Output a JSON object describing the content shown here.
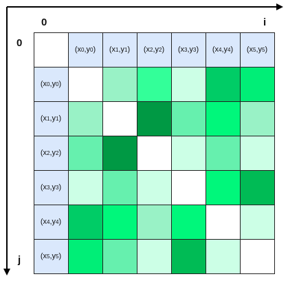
{
  "axes": {
    "origin_top": "0",
    "origin_left": "0",
    "horizontal": "i",
    "vertical": "j"
  },
  "headers": [
    {
      "x": "x",
      "xi": "0",
      "y": "y",
      "yi": "0"
    },
    {
      "x": "x",
      "xi": "1",
      "y": "y",
      "yi": "1"
    },
    {
      "x": "x",
      "xi": "2",
      "y": "y",
      "yi": "2"
    },
    {
      "x": "x",
      "xi": "3",
      "y": "y",
      "yi": "3"
    },
    {
      "x": "x",
      "xi": "4",
      "y": "y",
      "yi": "4"
    },
    {
      "x": "x",
      "xi": "5",
      "y": "y",
      "yi": "5"
    }
  ],
  "colors": {
    "header_bg": "#dae8fc",
    "diagonal": "#ffffff",
    "grid_line": "#222222"
  },
  "matrix": [
    [
      "#ffffff",
      "#99f2c6",
      "#33ff99",
      "#ccffe6",
      "#00cc66",
      "#00ee77"
    ],
    [
      "#99f2c6",
      "#ffffff",
      "#009944",
      "#66f0ae",
      "#00f77b",
      "#99f2c6"
    ],
    [
      "#66f0ae",
      "#009944",
      "#ffffff",
      "#ccffe6",
      "#66f0ae",
      "#ccffe6"
    ],
    [
      "#ccffe6",
      "#66f0ae",
      "#ccffe6",
      "#ffffff",
      "#00f77b",
      "#00bb55"
    ],
    [
      "#00cc66",
      "#00f77b",
      "#99f2c6",
      "#00f77b",
      "#ffffff",
      "#ccffe6"
    ],
    [
      "#00ee77",
      "#66f0ae",
      "#ccffe6",
      "#00bb55",
      "#ccffe6",
      "#ffffff"
    ]
  ]
}
